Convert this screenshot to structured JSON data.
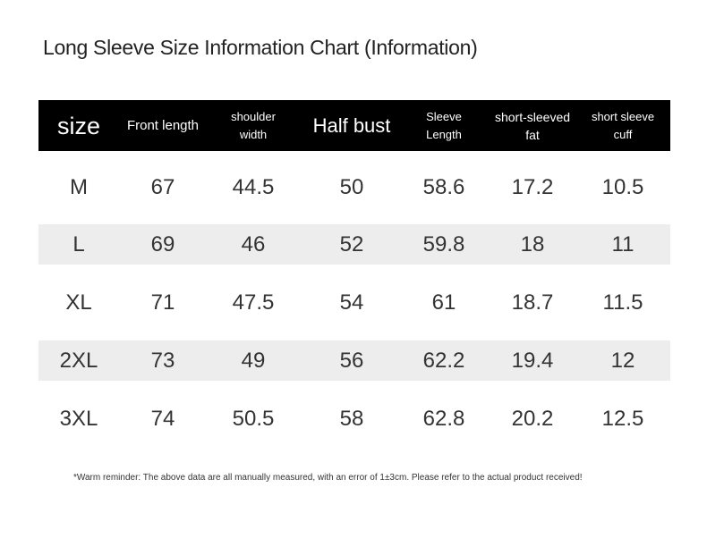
{
  "header": {
    "title": "Long Sleeve Size Information Chart (Information)"
  },
  "table": {
    "columns": [
      "size",
      "Front length",
      "shoulder width",
      "Half bust",
      "Sleeve Length",
      "short-sleeved fat",
      "short sleeve cuff"
    ],
    "rows": [
      [
        "M",
        "67",
        "44.5",
        "50",
        "58.6",
        "17.2",
        "10.5"
      ],
      [
        "L",
        "69",
        "46",
        "52",
        "59.8",
        "18",
        "11"
      ],
      [
        "XL",
        "71",
        "47.5",
        "54",
        "61",
        "18.7",
        "11.5"
      ],
      [
        "2XL",
        "73",
        "49",
        "56",
        "62.2",
        "19.4",
        "12"
      ],
      [
        "3XL",
        "74",
        "50.5",
        "58",
        "62.8",
        "20.2",
        "12.5"
      ]
    ]
  },
  "footer": {
    "note": "*Warm reminder: The above data are all manually measured, with an error of 1±3cm. Please refer to the actual product received!"
  }
}
